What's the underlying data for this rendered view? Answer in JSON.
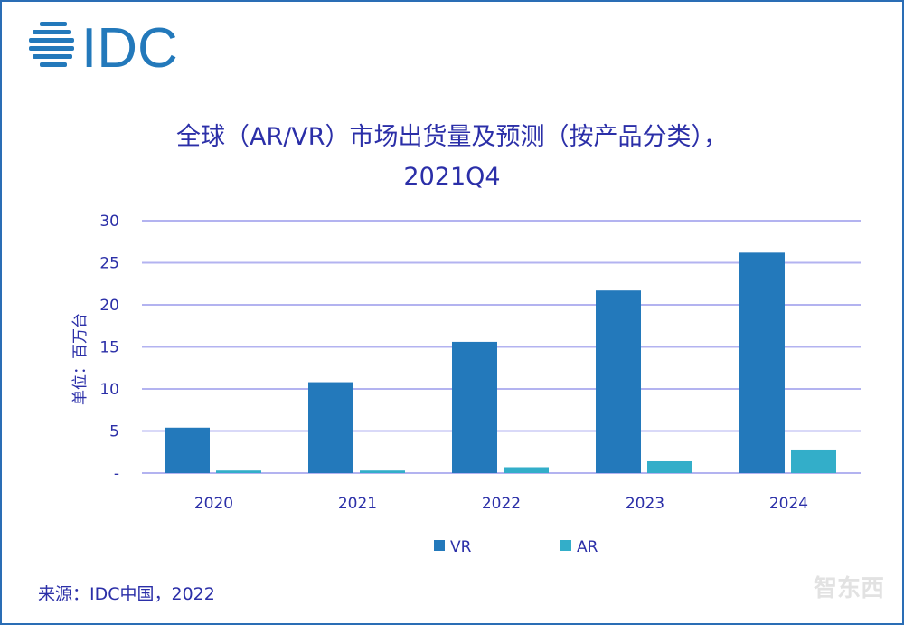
{
  "logo_text": "IDC",
  "source": "来源：IDC中国，2022",
  "watermark": "智东西",
  "chart_data": {
    "type": "bar",
    "title": "全球（AR/VR）市场出货量及预测（按产品分类），",
    "subtitle": "2021Q4",
    "ylabel": "单位：百万台",
    "xlabel": "",
    "categories": [
      "2020",
      "2021",
      "2022",
      "2023",
      "2024"
    ],
    "series": [
      {
        "name": "VR",
        "color": "#2379bb",
        "values": [
          5.4,
          10.8,
          15.6,
          21.7,
          26.2
        ]
      },
      {
        "name": "AR",
        "color": "#33aec9",
        "values": [
          0.3,
          0.3,
          0.7,
          1.4,
          2.8
        ]
      }
    ],
    "ylim": [
      0,
      30
    ],
    "yticks": [
      0,
      5,
      10,
      15,
      20,
      25,
      30
    ],
    "ytick_labels": [
      "-",
      "5",
      "10",
      "15",
      "20",
      "25",
      "30"
    ],
    "grid": true,
    "legend": "bottom",
    "grid_color": "#b3b3f0"
  }
}
